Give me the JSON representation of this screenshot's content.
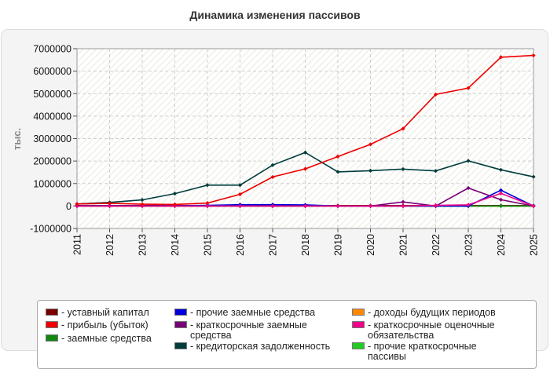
{
  "chart_data": {
    "type": "line",
    "title": "Динамика изменения пассивов",
    "ylabel": "тыс.",
    "xlabel": "",
    "ylim": [
      -1000000,
      7000000
    ],
    "yticks": [
      7000000,
      6000000,
      5000000,
      4000000,
      3000000,
      2000000,
      1000000,
      0,
      -1000000
    ],
    "ytick_labels": [
      "7000000",
      "6000000",
      "5000000",
      "4000000",
      "3000000",
      "2000000",
      "1000000",
      "0",
      "-1000000"
    ],
    "categories": [
      "2011",
      "2012",
      "2013",
      "2014",
      "2015",
      "2016",
      "2017",
      "2018",
      "2019",
      "2020",
      "2021",
      "2022",
      "2023",
      "2024",
      "2025"
    ],
    "grid": true,
    "legend_position": "bottom",
    "series": [
      {
        "name": "- уставный капитал",
        "color": "#7a0000",
        "values": [
          20000,
          20000,
          20000,
          20000,
          20000,
          20000,
          20000,
          20000,
          20000,
          20000,
          20000,
          20000,
          20000,
          20000,
          20000
        ]
      },
      {
        "name": "- прибыль (убыток)",
        "color": "#ee0000",
        "values": [
          90000,
          120000,
          80000,
          70000,
          130000,
          520000,
          1290000,
          1650000,
          2200000,
          2740000,
          3440000,
          4960000,
          5250000,
          6620000,
          6700000
        ]
      },
      {
        "name": "- заемные средства",
        "color": "#118811",
        "values": [
          0,
          0,
          0,
          0,
          0,
          0,
          0,
          0,
          0,
          0,
          0,
          0,
          0,
          0,
          0
        ]
      },
      {
        "name": "- прочие заемные средства",
        "color": "#0000dd",
        "values": [
          10000,
          10000,
          10000,
          10000,
          30000,
          60000,
          60000,
          50000,
          0,
          0,
          0,
          0,
          0,
          700000,
          0
        ]
      },
      {
        "name": "- краткосрочные заемные средства",
        "color": "#770077",
        "values": [
          0,
          0,
          0,
          0,
          0,
          0,
          0,
          0,
          0,
          0,
          180000,
          0,
          800000,
          280000,
          0
        ]
      },
      {
        "name": "- кредиторская задолженность",
        "color": "#003c3c",
        "values": [
          90000,
          160000,
          270000,
          550000,
          930000,
          930000,
          1820000,
          2380000,
          1520000,
          1570000,
          1640000,
          1560000,
          2010000,
          1610000,
          1300000
        ]
      },
      {
        "name": "- доходы будущих периодов",
        "color": "#ff8800",
        "values": [
          0,
          0,
          0,
          0,
          0,
          0,
          0,
          0,
          0,
          0,
          0,
          0,
          0,
          0,
          0
        ]
      },
      {
        "name": "- краткосрочные оценочные обязательства",
        "color": "#ee0088",
        "values": [
          0,
          0,
          0,
          0,
          0,
          0,
          0,
          0,
          0,
          0,
          0,
          30000,
          50000,
          560000,
          0
        ]
      },
      {
        "name": "- прочие краткосрочные пассивы",
        "color": "#22cc22",
        "values": [
          0,
          0,
          0,
          0,
          0,
          0,
          0,
          0,
          0,
          0,
          0,
          0,
          0,
          0,
          0
        ]
      }
    ]
  }
}
